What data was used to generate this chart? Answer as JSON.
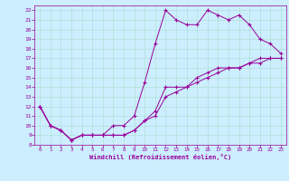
{
  "xlabel": "Windchill (Refroidissement éolien,°C)",
  "bg_color": "#cceeff",
  "line_color": "#990099",
  "xlim": [
    -0.5,
    23.5
  ],
  "ylim": [
    8,
    22.5
  ],
  "xticks": [
    0,
    1,
    2,
    3,
    4,
    5,
    6,
    7,
    8,
    9,
    10,
    11,
    12,
    13,
    14,
    15,
    16,
    17,
    18,
    19,
    20,
    21,
    22,
    23
  ],
  "yticks": [
    8,
    9,
    10,
    11,
    12,
    13,
    14,
    15,
    16,
    17,
    18,
    19,
    20,
    21,
    22
  ],
  "line1_x": [
    0,
    1,
    2,
    3,
    4,
    5,
    6,
    7,
    8,
    9,
    10,
    11,
    12,
    13,
    14,
    15,
    16,
    17,
    18,
    19,
    20,
    21,
    22,
    23
  ],
  "line1_y": [
    12,
    10,
    9.5,
    8.5,
    9,
    9,
    9,
    10,
    10,
    11,
    14.5,
    18.5,
    22,
    21,
    20.5,
    20.5,
    22,
    21.5,
    21,
    21.5,
    20.5,
    19,
    18.5,
    17.5
  ],
  "line2_x": [
    0,
    1,
    2,
    3,
    4,
    5,
    6,
    7,
    8,
    9,
    10,
    11,
    12,
    13,
    14,
    15,
    16,
    17,
    18,
    19,
    20,
    21,
    22,
    23
  ],
  "line2_y": [
    12,
    10,
    9.5,
    8.5,
    9,
    9,
    9,
    9,
    9,
    9.5,
    10.5,
    11.5,
    14,
    14,
    14,
    15,
    15.5,
    16,
    16,
    16,
    16.5,
    16.5,
    17,
    17
  ],
  "line3_x": [
    0,
    1,
    2,
    3,
    4,
    5,
    6,
    7,
    8,
    9,
    10,
    11,
    12,
    13,
    14,
    15,
    16,
    17,
    18,
    19,
    20,
    21,
    22,
    23
  ],
  "line3_y": [
    12,
    10,
    9.5,
    8.5,
    9,
    9,
    9,
    9,
    9,
    9.5,
    10.5,
    11,
    13,
    13.5,
    14,
    14.5,
    15,
    15.5,
    16,
    16,
    16.5,
    17,
    17,
    17
  ]
}
